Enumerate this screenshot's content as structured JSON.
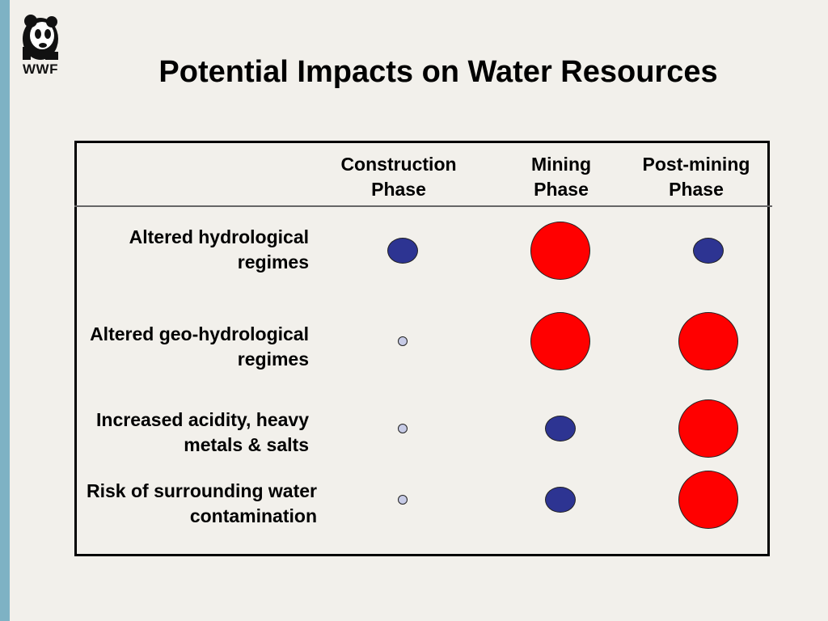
{
  "logo": {
    "text": "WWF"
  },
  "title": "Potential Impacts on Water Resources",
  "columns": [
    {
      "line1": "Construction",
      "line2": "Phase"
    },
    {
      "line1": "Mining",
      "line2": "Phase"
    },
    {
      "line1": "Post-mining",
      "line2": "Phase"
    }
  ],
  "rows": [
    {
      "line1": "Altered hydrological",
      "line2": "regimes",
      "impacts": [
        "medium",
        "high",
        "medium"
      ]
    },
    {
      "line1": "Altered geo-hydrological",
      "line2": "regimes",
      "impacts": [
        "low",
        "high",
        "high"
      ]
    },
    {
      "line1": "Increased acidity, heavy",
      "line2": "metals & salts",
      "impacts": [
        "low",
        "medium",
        "high"
      ]
    },
    {
      "line1": "Risk of surrounding water",
      "line2": "contamination",
      "impacts": [
        "low",
        "medium",
        "high"
      ]
    }
  ],
  "colors": {
    "high": "#ff0000",
    "medium": "#2d3492",
    "low": "#c7cbe6",
    "accent_bar": "#7eb2c4"
  }
}
